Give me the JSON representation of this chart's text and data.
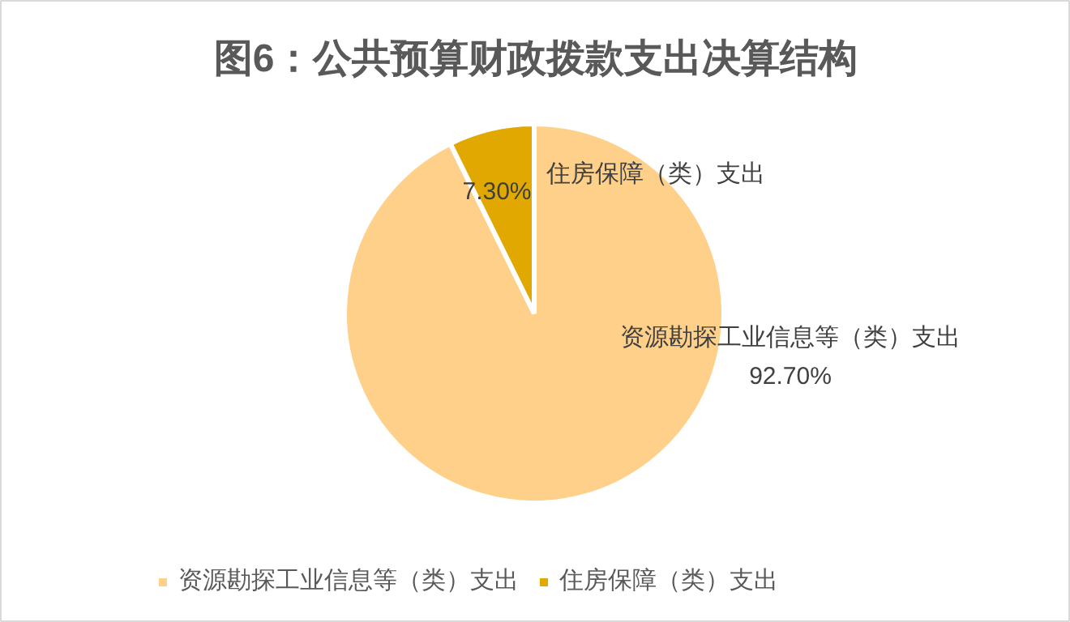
{
  "chart_data": {
    "type": "pie",
    "title": "图6：公共预算财政拨款支出决算结构",
    "categories": [
      "资源勘探工业信息等（类）支出",
      "住房保障（类）支出"
    ],
    "values": [
      92.7,
      7.3
    ],
    "value_labels": [
      "92.70%",
      "7.30%"
    ],
    "colors": [
      "#ffd08a",
      "#e0a800"
    ],
    "legend": "bottom"
  }
}
